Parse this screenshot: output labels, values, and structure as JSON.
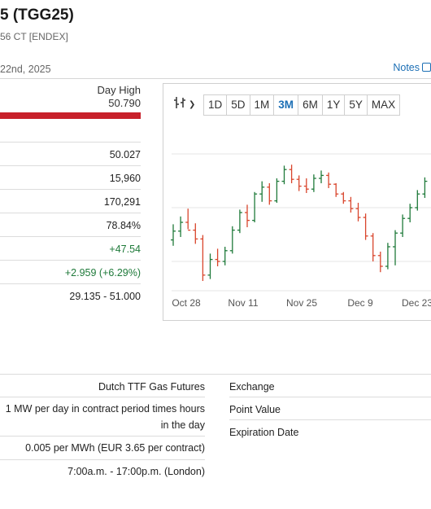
{
  "header": {
    "title": "5 (TGG25)",
    "subtitle": "56 CT [ENDEX]",
    "date": "22nd, 2025",
    "notes_label": "Notes"
  },
  "quote": {
    "day_high_label": "Day High",
    "day_high_value": "50.790",
    "rows": [
      "50.027",
      "15,960",
      "170,291",
      "78.84%",
      "+47.54",
      "+2.959 (+6.29%)",
      "29.135 - 51.000"
    ]
  },
  "chart": {
    "tool_icon": "candlestick-chart-icon",
    "ranges": [
      "1D",
      "5D",
      "1M",
      "3M",
      "6M",
      "1Y",
      "5Y",
      "MAX"
    ],
    "active_range": "3M",
    "colors": {
      "up": "#1f7a3a",
      "down": "#d9452c"
    }
  },
  "chart_data": {
    "type": "line",
    "x_tick_labels": [
      "Oct 28",
      "Nov 11",
      "Nov 25",
      "Dec 9",
      "Dec 23"
    ],
    "ylim": [
      38,
      52
    ],
    "grid": true,
    "bars": [
      {
        "o": 43.2,
        "h": 44.8,
        "l": 42.6,
        "c": 44.1
      },
      {
        "o": 44.1,
        "h": 45.6,
        "l": 43.5,
        "c": 45.0
      },
      {
        "o": 45.0,
        "h": 46.4,
        "l": 44.3,
        "c": 44.2
      },
      {
        "o": 44.2,
        "h": 44.9,
        "l": 42.8,
        "c": 43.3
      },
      {
        "o": 43.3,
        "h": 43.7,
        "l": 39.0,
        "c": 39.6
      },
      {
        "o": 39.6,
        "h": 41.8,
        "l": 39.2,
        "c": 41.2
      },
      {
        "o": 41.2,
        "h": 42.3,
        "l": 40.5,
        "c": 41.0
      },
      {
        "o": 41.0,
        "h": 42.5,
        "l": 40.6,
        "c": 42.1
      },
      {
        "o": 42.1,
        "h": 44.6,
        "l": 41.8,
        "c": 44.2
      },
      {
        "o": 44.2,
        "h": 46.3,
        "l": 43.9,
        "c": 46.0
      },
      {
        "o": 46.0,
        "h": 46.8,
        "l": 44.5,
        "c": 45.2
      },
      {
        "o": 45.2,
        "h": 48.1,
        "l": 45.0,
        "c": 47.9
      },
      {
        "o": 47.9,
        "h": 49.2,
        "l": 47.1,
        "c": 48.6
      },
      {
        "o": 48.6,
        "h": 49.0,
        "l": 46.8,
        "c": 47.2
      },
      {
        "o": 47.2,
        "h": 49.5,
        "l": 47.0,
        "c": 49.2
      },
      {
        "o": 49.2,
        "h": 50.8,
        "l": 48.9,
        "c": 50.4
      },
      {
        "o": 50.4,
        "h": 50.9,
        "l": 49.0,
        "c": 49.4
      },
      {
        "o": 49.4,
        "h": 49.8,
        "l": 48.2,
        "c": 48.7
      },
      {
        "o": 48.7,
        "h": 49.5,
        "l": 48.0,
        "c": 48.4
      },
      {
        "o": 48.4,
        "h": 49.9,
        "l": 48.1,
        "c": 49.5
      },
      {
        "o": 49.5,
        "h": 50.3,
        "l": 49.0,
        "c": 49.8
      },
      {
        "o": 49.8,
        "h": 50.1,
        "l": 48.5,
        "c": 48.9
      },
      {
        "o": 48.9,
        "h": 49.0,
        "l": 47.6,
        "c": 47.9
      },
      {
        "o": 47.9,
        "h": 48.1,
        "l": 46.9,
        "c": 47.2
      },
      {
        "o": 47.2,
        "h": 47.6,
        "l": 46.0,
        "c": 46.4
      },
      {
        "o": 46.4,
        "h": 47.0,
        "l": 45.1,
        "c": 45.5
      },
      {
        "o": 45.5,
        "h": 45.9,
        "l": 43.2,
        "c": 43.6
      },
      {
        "o": 43.6,
        "h": 43.9,
        "l": 41.0,
        "c": 41.6
      },
      {
        "o": 41.6,
        "h": 42.0,
        "l": 39.9,
        "c": 40.5
      },
      {
        "o": 40.5,
        "h": 42.9,
        "l": 40.2,
        "c": 42.5
      },
      {
        "o": 42.5,
        "h": 44.2,
        "l": 40.6,
        "c": 43.9
      },
      {
        "o": 43.9,
        "h": 45.8,
        "l": 43.5,
        "c": 45.4
      },
      {
        "o": 45.4,
        "h": 46.9,
        "l": 45.0,
        "c": 46.5
      },
      {
        "o": 46.5,
        "h": 48.3,
        "l": 46.2,
        "c": 47.9
      },
      {
        "o": 47.9,
        "h": 49.6,
        "l": 47.5,
        "c": 49.2
      }
    ]
  },
  "specs": {
    "left": [
      "Dutch TTF Gas Futures",
      "1 MW per day in contract period times hours in the day",
      "0.005 per MWh (EUR 3.65 per contract)",
      "7:00a.m. - 17:00p.m. (London)"
    ],
    "right": [
      "Exchange",
      "Point Value",
      "Expiration Date"
    ]
  }
}
